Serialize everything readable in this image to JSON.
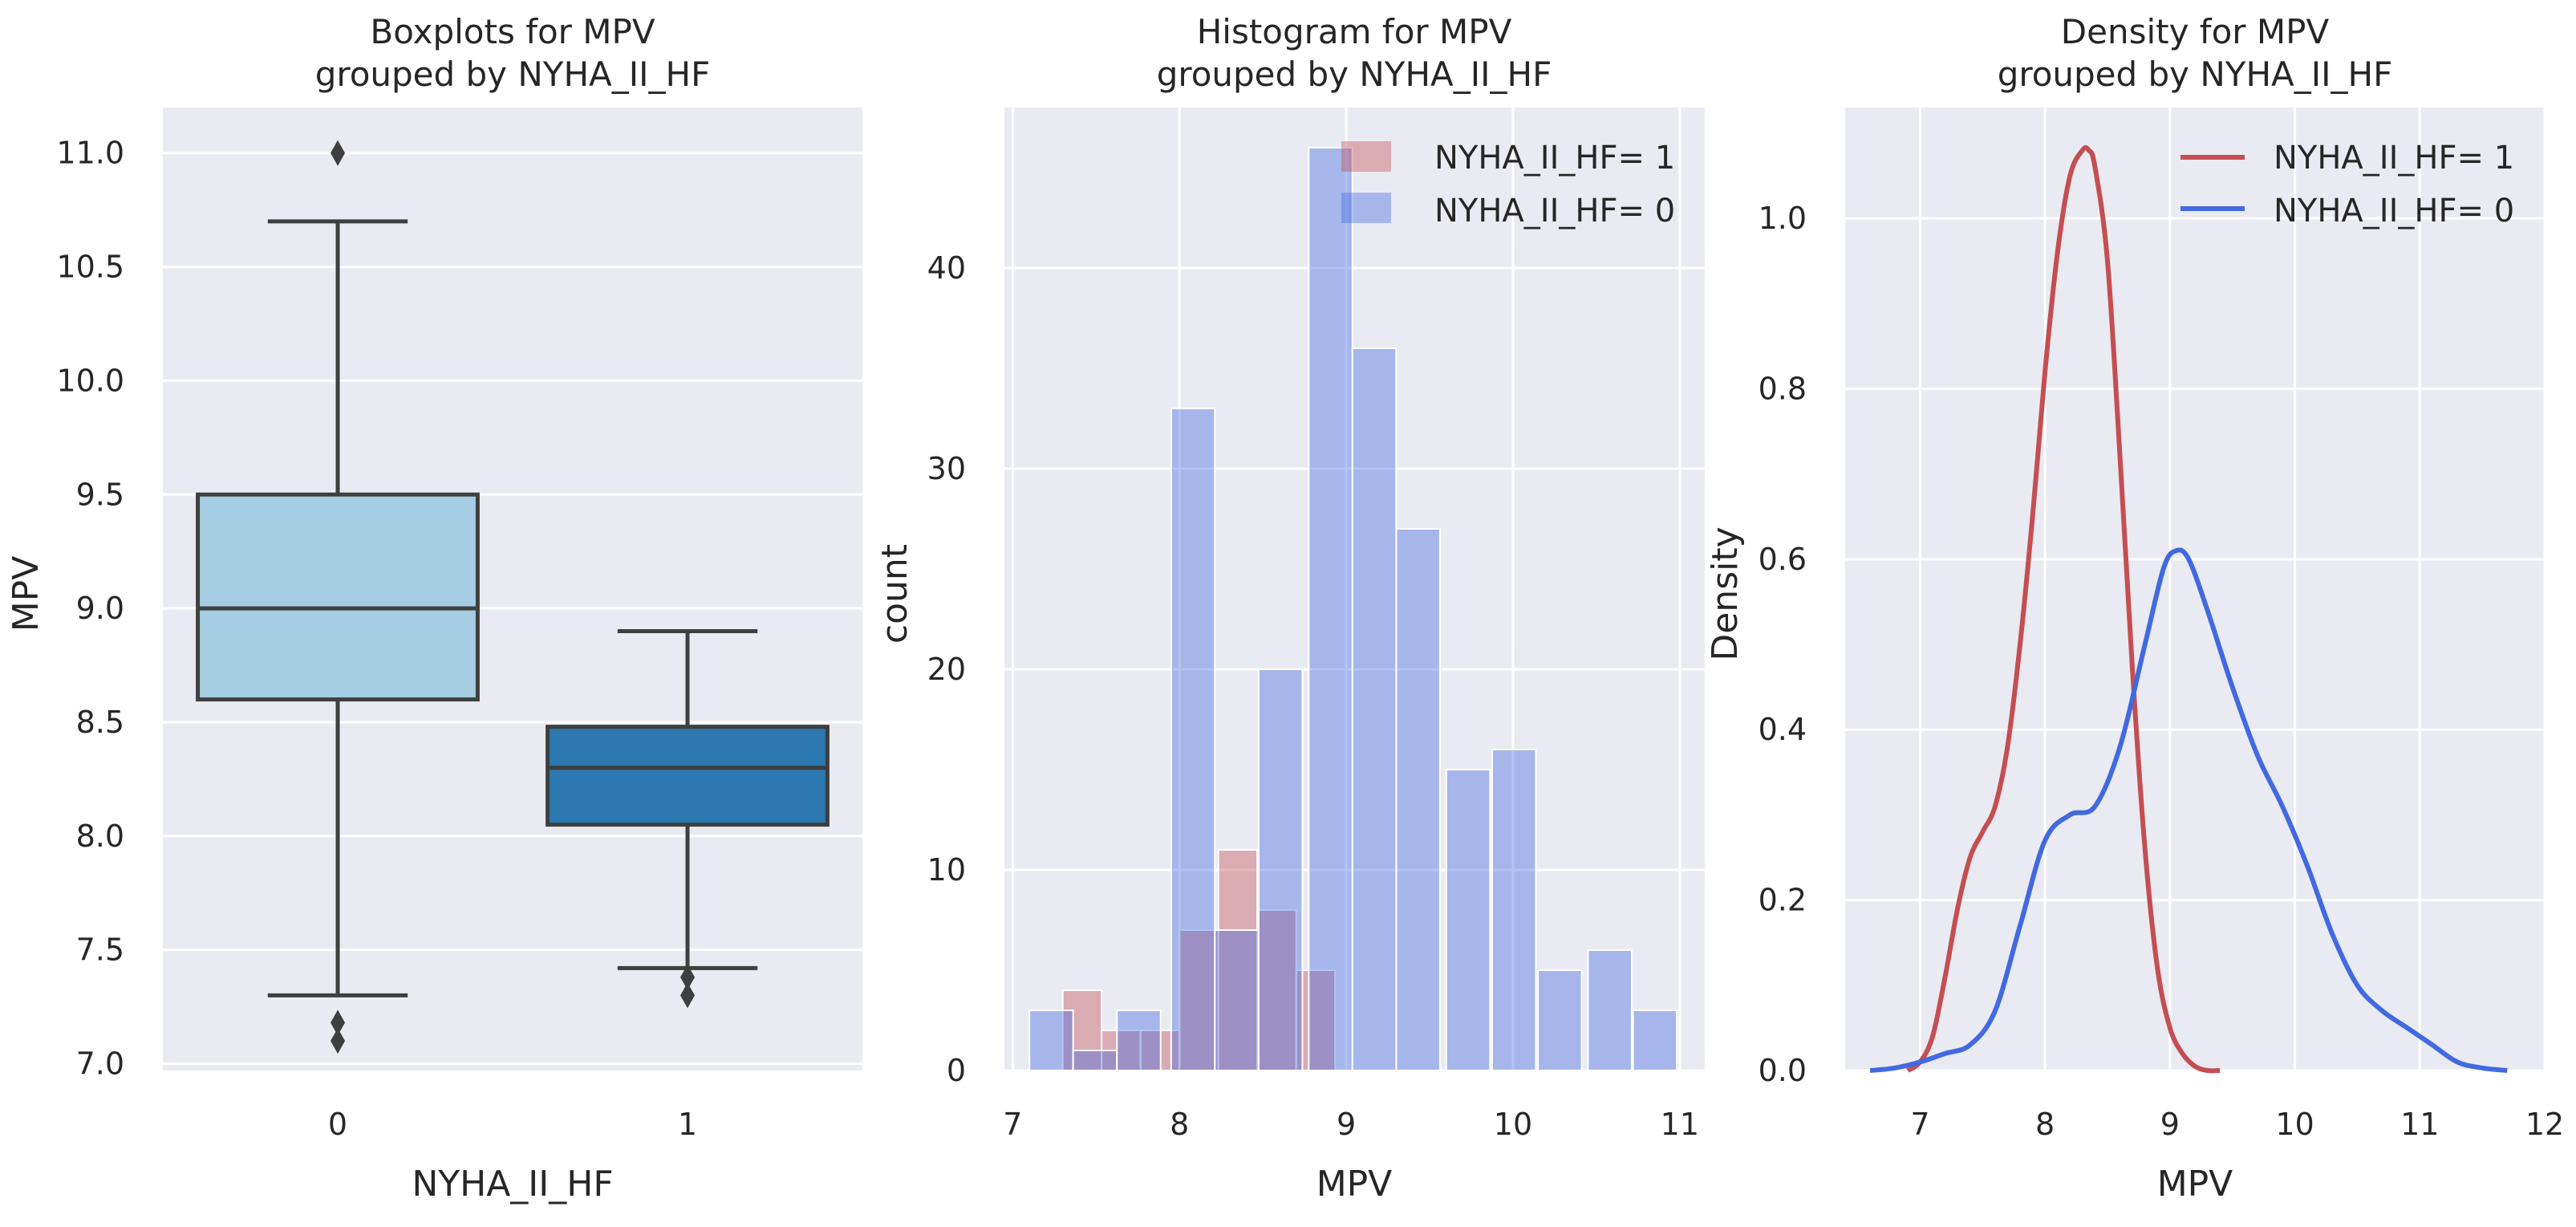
{
  "chart_data": [
    {
      "type": "box",
      "title": [
        "Boxplots for MPV",
        "grouped by NYHA_II_HF"
      ],
      "xlabel": "NYHA_II_HF",
      "ylabel": "MPV",
      "ylim": [
        6.97,
        11.2
      ],
      "yticks": [
        7.0,
        7.5,
        8.0,
        8.5,
        9.0,
        9.5,
        10.0,
        10.5,
        11.0
      ],
      "ytick_labels": [
        "7.0",
        "7.5",
        "8.0",
        "8.5",
        "9.0",
        "9.5",
        "10.0",
        "10.5",
        "11.0"
      ],
      "groups": [
        {
          "label": "0",
          "color": "#a6cee3",
          "whisker_low": 7.3,
          "q1": 8.6,
          "median": 9.0,
          "q3": 9.5,
          "whisker_high": 10.7,
          "outliers": [
            7.1,
            7.18,
            11.0
          ]
        },
        {
          "label": "1",
          "color": "#2b79b0",
          "whisker_low": 7.42,
          "q1": 8.05,
          "median": 8.3,
          "q3": 8.48,
          "whisker_high": 8.9,
          "outliers": [
            7.3,
            7.38
          ]
        }
      ]
    },
    {
      "type": "histogram",
      "title": [
        "Histogram for MPV",
        "grouped by NYHA_II_HF"
      ],
      "xlabel": "MPV",
      "ylabel": "count",
      "xlim": [
        6.95,
        11.15
      ],
      "ylim": [
        0,
        48
      ],
      "xticks": [
        7,
        8,
        9,
        10,
        11
      ],
      "yticks": [
        0,
        10,
        20,
        30,
        40
      ],
      "legend_position": "top-right",
      "series": [
        {
          "name": "NYHA_II_HF= 1",
          "color": "#c44e52",
          "opacity": 0.4,
          "bin_width": 0.233,
          "bins": [
            {
              "x0": 7.3,
              "value": 4
            },
            {
              "x0": 7.533,
              "value": 2
            },
            {
              "x0": 7.767,
              "value": 2
            },
            {
              "x0": 8.0,
              "value": 7
            },
            {
              "x0": 8.233,
              "value": 11
            },
            {
              "x0": 8.467,
              "value": 8
            },
            {
              "x0": 8.7,
              "value": 5
            }
          ]
        },
        {
          "name": "NYHA_II_HF= 0",
          "color": "#4169e1",
          "opacity": 0.4,
          "bin_width": 0.262,
          "bins": [
            {
              "x0": 7.1,
              "value": 3
            },
            {
              "x0": 7.362,
              "value": 1
            },
            {
              "x0": 7.625,
              "value": 3
            },
            {
              "x0": 7.888,
              "value": 0
            },
            {
              "x0": 7.95,
              "value": 33
            },
            {
              "x0": 8.212,
              "value": 7
            },
            {
              "x0": 8.475,
              "value": 20
            },
            {
              "x0": 8.775,
              "value": 46
            },
            {
              "x0": 9.037,
              "value": 36
            },
            {
              "x0": 9.3,
              "value": 27
            },
            {
              "x0": 9.6,
              "value": 15
            },
            {
              "x0": 9.875,
              "value": 16
            },
            {
              "x0": 10.15,
              "value": 5
            },
            {
              "x0": 10.45,
              "value": 6
            },
            {
              "x0": 10.72,
              "value": 3
            }
          ]
        }
      ]
    },
    {
      "type": "line",
      "title": [
        "Density for MPV",
        "grouped by NYHA_II_HF"
      ],
      "xlabel": "MPV",
      "ylabel": "Density",
      "xlim": [
        6.4,
        12.0
      ],
      "ylim": [
        0,
        1.13
      ],
      "xticks": [
        7,
        8,
        9,
        10,
        11,
        12
      ],
      "yticks": [
        0.0,
        0.2,
        0.4,
        0.6,
        0.8,
        1.0
      ],
      "ytick_labels": [
        "0.0",
        "0.2",
        "0.4",
        "0.6",
        "0.8",
        "1.0"
      ],
      "legend_position": "top-right",
      "series": [
        {
          "name": "NYHA_II_HF= 1",
          "color": "#c44e52",
          "x": [
            6.9,
            7.0,
            7.1,
            7.2,
            7.3,
            7.4,
            7.5,
            7.6,
            7.7,
            7.8,
            7.9,
            8.0,
            8.1,
            8.2,
            8.3,
            8.35,
            8.4,
            8.5,
            8.6,
            8.7,
            8.8,
            8.9,
            9.0,
            9.1,
            9.2,
            9.3,
            9.4
          ],
          "y": [
            0.0,
            0.01,
            0.04,
            0.11,
            0.19,
            0.25,
            0.28,
            0.31,
            0.38,
            0.5,
            0.65,
            0.82,
            0.96,
            1.05,
            1.08,
            1.08,
            1.06,
            0.95,
            0.72,
            0.47,
            0.26,
            0.12,
            0.05,
            0.02,
            0.005,
            0.0,
            0.0
          ]
        },
        {
          "name": "NYHA_II_HF= 0",
          "color": "#4169e1",
          "x": [
            6.6,
            6.8,
            7.0,
            7.2,
            7.4,
            7.6,
            7.8,
            8.0,
            8.2,
            8.4,
            8.6,
            8.8,
            8.95,
            9.05,
            9.15,
            9.3,
            9.5,
            9.7,
            9.9,
            10.1,
            10.3,
            10.5,
            10.7,
            10.9,
            11.1,
            11.3,
            11.5,
            11.7
          ],
          "y": [
            0.0,
            0.003,
            0.01,
            0.02,
            0.03,
            0.07,
            0.17,
            0.27,
            0.3,
            0.31,
            0.38,
            0.5,
            0.59,
            0.61,
            0.6,
            0.54,
            0.45,
            0.37,
            0.31,
            0.24,
            0.16,
            0.1,
            0.07,
            0.05,
            0.03,
            0.01,
            0.003,
            0.0
          ]
        }
      ]
    }
  ]
}
